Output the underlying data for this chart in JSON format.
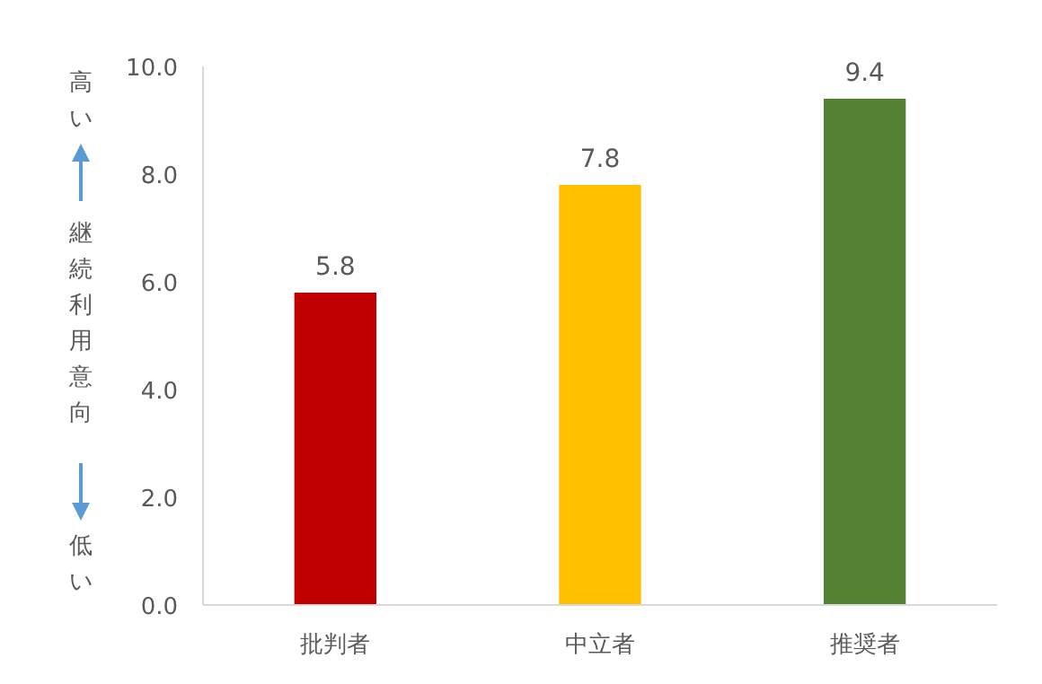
{
  "chart_data": {
    "type": "bar",
    "categories": [
      "批判者",
      "中立者",
      "推奨者"
    ],
    "values": [
      5.8,
      7.8,
      9.4
    ],
    "colors": [
      "#c00000",
      "#ffc000",
      "#548235"
    ],
    "ylim": [
      0,
      10
    ],
    "yticks": [
      {
        "value": 0,
        "label": "0.0"
      },
      {
        "value": 2,
        "label": "2.0"
      },
      {
        "value": 4,
        "label": "4.0"
      },
      {
        "value": 6,
        "label": "6.0"
      },
      {
        "value": 8,
        "label": "8.0"
      },
      {
        "value": 10,
        "label": "10.0"
      }
    ],
    "ylabel": "継続利用意向",
    "annotations": [
      "高い",
      "低い"
    ],
    "data_labels": true,
    "grid": false
  }
}
